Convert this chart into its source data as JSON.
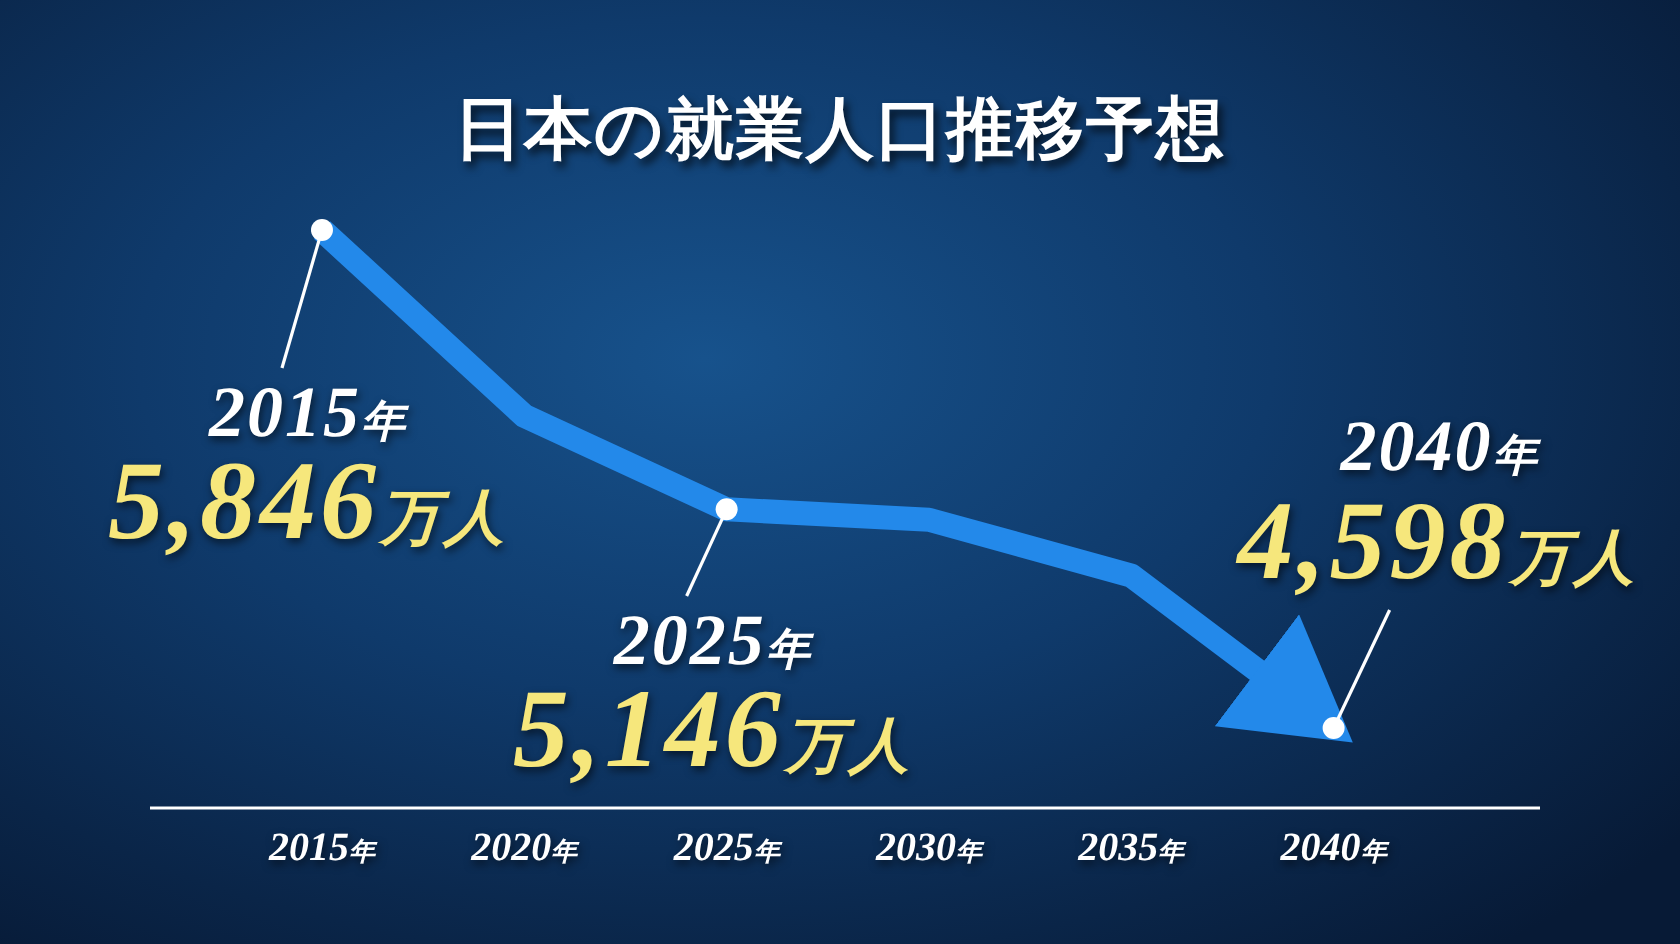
{
  "chart_data": {
    "type": "line",
    "title": "日本の就業人口推移予想",
    "x": [
      2015,
      2020,
      2025,
      2030,
      2035,
      2040
    ],
    "series": [
      {
        "color": "#2389ea",
        "marker": "none",
        "values": [
          5846,
          5380,
          5146,
          5120,
          4980,
          4598
        ]
      },
      {
        "type": "scatter",
        "color": "#ffffff",
        "marker": "circle",
        "x": [
          2015,
          2025,
          2040
        ],
        "values": [
          5846,
          5146,
          4598
        ],
        "value_labels": [
          "5,846万人",
          "5,146万人",
          "4,598万人"
        ]
      }
    ],
    "annotations": [
      "2015年",
      "2025年",
      "2040年"
    ],
    "xlim": [
      2010.75,
      2045.1
    ],
    "xticks": [
      {
        "value": 2015,
        "label": "2015年"
      },
      {
        "value": 2020,
        "label": "2020年"
      },
      {
        "value": 2025,
        "label": "2025年"
      },
      {
        "value": 2030,
        "label": "2030年"
      },
      {
        "value": 2035,
        "label": "2035年"
      },
      {
        "value": 2040,
        "label": "2040年"
      }
    ],
    "tick_labels": "x"
  }
}
